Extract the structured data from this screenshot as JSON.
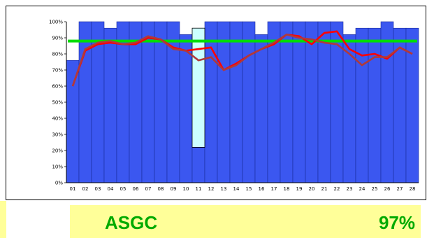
{
  "chart_data": {
    "type": "bar",
    "title": "",
    "xlabel": "",
    "ylabel": "",
    "ylim": [
      0,
      100
    ],
    "grid": false,
    "legend": "none",
    "categories": [
      "01",
      "02",
      "03",
      "04",
      "05",
      "06",
      "07",
      "08",
      "09",
      "10",
      "11",
      "12",
      "13",
      "14",
      "15",
      "16",
      "17",
      "18",
      "19",
      "20",
      "21",
      "22",
      "23",
      "24",
      "25",
      "26",
      "27",
      "28"
    ],
    "y_tick_labels": [
      "0%",
      "10%",
      "20%",
      "30%",
      "40%",
      "50%",
      "60%",
      "70%",
      "80%",
      "90%",
      "100%"
    ],
    "series": [
      {
        "kind": "bar",
        "color": "#3b57f0",
        "values": [
          76,
          100,
          100,
          96,
          100,
          100,
          100,
          100,
          100,
          92,
          22,
          100,
          100,
          100,
          100,
          92,
          100,
          100,
          100,
          100,
          100,
          100,
          92,
          96,
          96,
          100,
          96,
          96
        ]
      },
      {
        "kind": "bar-highlight",
        "color": "#ccffff",
        "category": "11",
        "value": 96
      },
      {
        "kind": "line",
        "color": "#ff0000",
        "values": [
          60,
          82,
          86,
          87,
          86,
          86,
          90,
          89,
          84,
          82,
          83,
          84,
          70,
          74,
          79,
          83,
          86,
          92,
          91,
          86,
          93,
          94,
          83,
          79,
          80,
          77,
          84,
          80
        ]
      },
      {
        "kind": "line",
        "color": "#b03a3a",
        "values": [
          60,
          83,
          87,
          88,
          86,
          87,
          91,
          89,
          83,
          82,
          76,
          78,
          70,
          73,
          79,
          83,
          87,
          92,
          90,
          89,
          87,
          86,
          80,
          73,
          78,
          78,
          84,
          80
        ]
      },
      {
        "kind": "target-line",
        "color": "#00dd00",
        "value": 88
      }
    ]
  },
  "footer": {
    "site_name": "ASGC",
    "site_value": "97%",
    "site_name_color": "#00aa00",
    "site_value_color": "#00aa00",
    "background": "#ffff99"
  }
}
